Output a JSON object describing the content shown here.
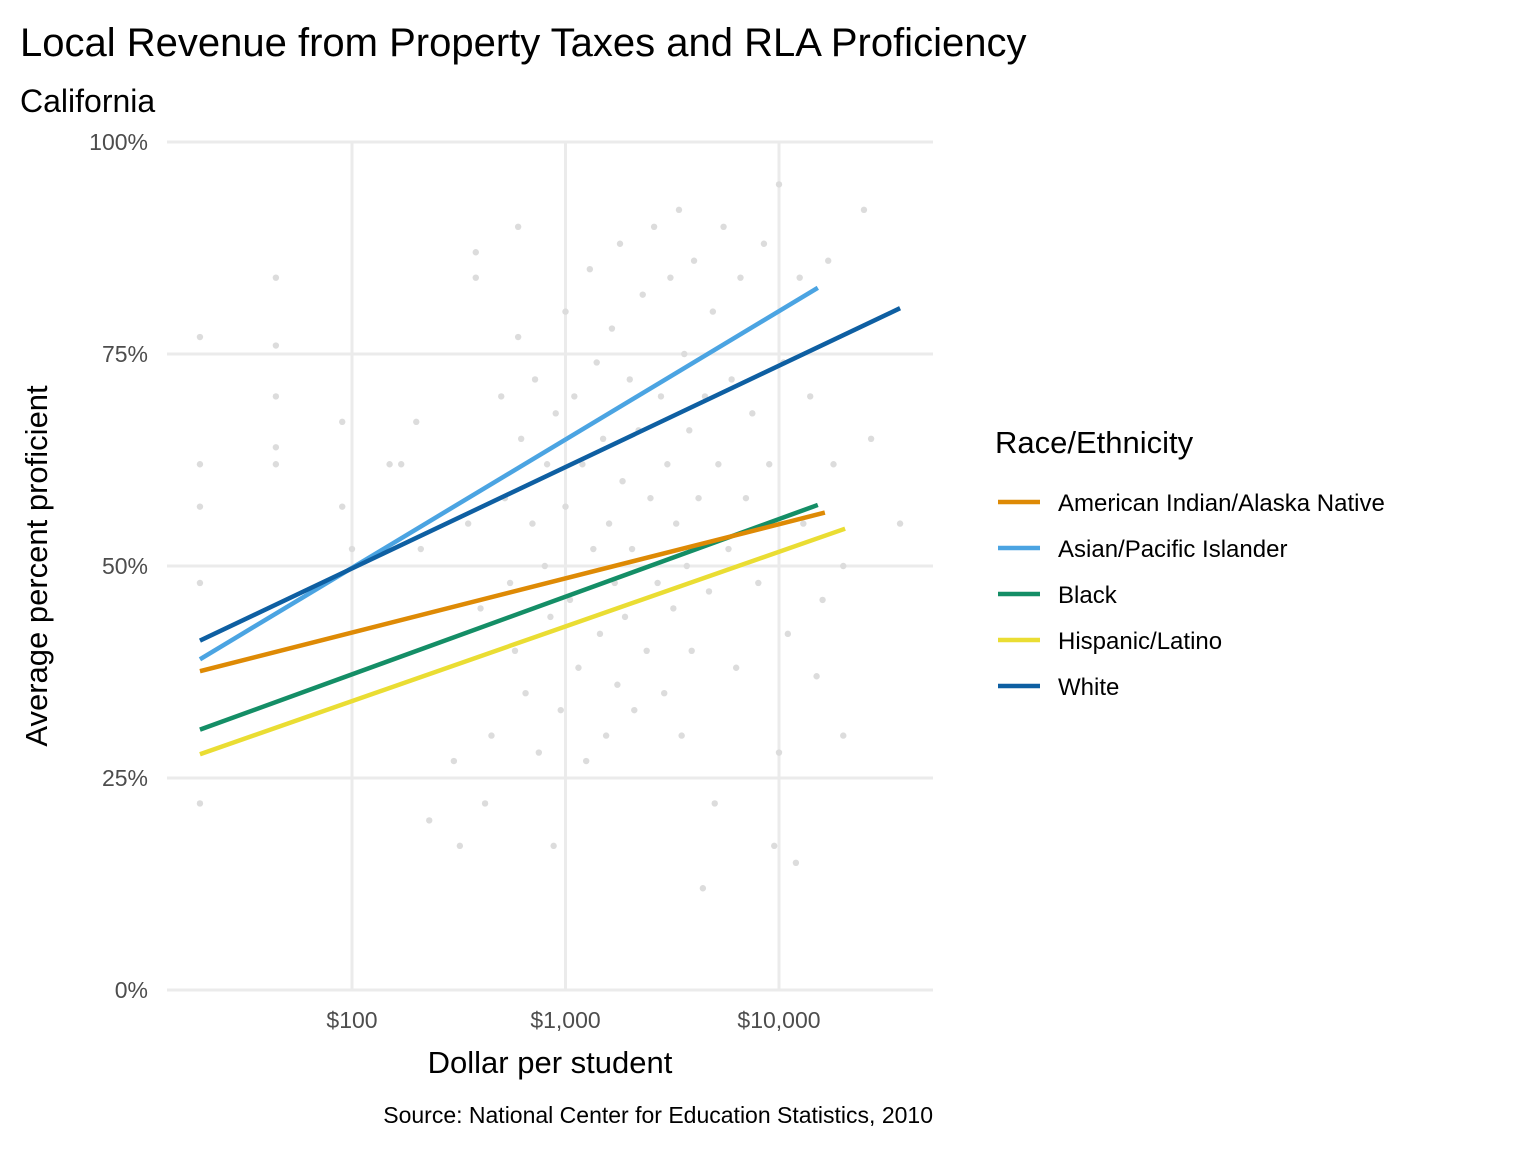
{
  "chart_data": {
    "type": "scatter",
    "title": "Local Revenue from Property Taxes and RLA Proficiency",
    "subtitle": "California",
    "xlabel": "Dollar per student",
    "ylabel": "Average percent proficient",
    "caption": "Source: National Center for Education Statistics, 2010",
    "x_scale": "log10",
    "xlim": [
      12,
      55000
    ],
    "ylim": [
      0,
      100
    ],
    "x_ticks": [
      {
        "value": 100,
        "label": "$100"
      },
      {
        "value": 1000,
        "label": "$1,000"
      },
      {
        "value": 10000,
        "label": "$10,000"
      }
    ],
    "y_ticks": [
      {
        "value": 0,
        "label": "0%"
      },
      {
        "value": 25,
        "label": "25%"
      },
      {
        "value": 50,
        "label": "50%"
      },
      {
        "value": 75,
        "label": "75%"
      },
      {
        "value": 100,
        "label": "100%"
      }
    ],
    "grid": true,
    "legend": {
      "title": "Race/Ethnicity",
      "placement": "right"
    },
    "series": [
      {
        "name": "American Indian/Alaska Native",
        "color": "#DE8A05",
        "type": "line",
        "x": [
          19.4,
          16400
        ],
        "y": [
          37.6,
          56.3
        ]
      },
      {
        "name": "Asian/Pacific Islander",
        "color": "#4BA4E2",
        "type": "line",
        "x": [
          19.4,
          15200
        ],
        "y": [
          39.0,
          82.8
        ]
      },
      {
        "name": "Black",
        "color": "#148E66",
        "type": "line",
        "x": [
          19.4,
          15200
        ],
        "y": [
          30.7,
          57.2
        ]
      },
      {
        "name": "Hispanic/Latino",
        "color": "#EADD33",
        "type": "line",
        "x": [
          19.4,
          20400
        ],
        "y": [
          27.8,
          54.4
        ]
      },
      {
        "name": "White",
        "color": "#0E5FA2",
        "type": "line",
        "x": [
          19.4,
          36900
        ],
        "y": [
          41.2,
          80.4
        ]
      }
    ],
    "points": {
      "color": "#dcdcdc",
      "data": [
        [
          19.4,
          77
        ],
        [
          19.4,
          62
        ],
        [
          19.4,
          57
        ],
        [
          19.4,
          48
        ],
        [
          19.4,
          22
        ],
        [
          44,
          84
        ],
        [
          44,
          76
        ],
        [
          44,
          70
        ],
        [
          44,
          64
        ],
        [
          44,
          62
        ],
        [
          90,
          67
        ],
        [
          90,
          57
        ],
        [
          100,
          52
        ],
        [
          150,
          62
        ],
        [
          170,
          62
        ],
        [
          200,
          67
        ],
        [
          210,
          52
        ],
        [
          230,
          20
        ],
        [
          300,
          27
        ],
        [
          320,
          17
        ],
        [
          350,
          55
        ],
        [
          380,
          84
        ],
        [
          380,
          87
        ],
        [
          400,
          45
        ],
        [
          420,
          22
        ],
        [
          450,
          30
        ],
        [
          500,
          70
        ],
        [
          520,
          58
        ],
        [
          550,
          48
        ],
        [
          580,
          40
        ],
        [
          600,
          77
        ],
        [
          620,
          65
        ],
        [
          650,
          35
        ],
        [
          700,
          55
        ],
        [
          720,
          72
        ],
        [
          750,
          28
        ],
        [
          800,
          50
        ],
        [
          820,
          62
        ],
        [
          850,
          44
        ],
        [
          880,
          17
        ],
        [
          900,
          68
        ],
        [
          950,
          33
        ],
        [
          1000,
          57
        ],
        [
          1000,
          80
        ],
        [
          1050,
          46
        ],
        [
          1100,
          70
        ],
        [
          1150,
          38
        ],
        [
          1200,
          62
        ],
        [
          1250,
          27
        ],
        [
          1300,
          85
        ],
        [
          1350,
          52
        ],
        [
          1400,
          74
        ],
        [
          1450,
          42
        ],
        [
          1500,
          65
        ],
        [
          1550,
          30
        ],
        [
          1600,
          55
        ],
        [
          1650,
          78
        ],
        [
          1700,
          48
        ],
        [
          1750,
          36
        ],
        [
          1800,
          88
        ],
        [
          1850,
          60
        ],
        [
          1900,
          44
        ],
        [
          2000,
          72
        ],
        [
          2050,
          52
        ],
        [
          2100,
          33
        ],
        [
          2200,
          66
        ],
        [
          2300,
          82
        ],
        [
          2400,
          40
        ],
        [
          2500,
          58
        ],
        [
          2600,
          90
        ],
        [
          2700,
          48
        ],
        [
          2800,
          70
        ],
        [
          2900,
          35
        ],
        [
          3000,
          62
        ],
        [
          3100,
          84
        ],
        [
          3200,
          45
        ],
        [
          3300,
          55
        ],
        [
          3400,
          92
        ],
        [
          3500,
          30
        ],
        [
          3600,
          75
        ],
        [
          3700,
          50
        ],
        [
          3800,
          66
        ],
        [
          3900,
          40
        ],
        [
          4000,
          86
        ],
        [
          4200,
          58
        ],
        [
          4400,
          12
        ],
        [
          4500,
          70
        ],
        [
          4700,
          47
        ],
        [
          4900,
          80
        ],
        [
          5000,
          22
        ],
        [
          5200,
          62
        ],
        [
          5500,
          90
        ],
        [
          5800,
          52
        ],
        [
          6000,
          72
        ],
        [
          6300,
          38
        ],
        [
          6600,
          84
        ],
        [
          7000,
          58
        ],
        [
          7500,
          68
        ],
        [
          8000,
          48
        ],
        [
          8500,
          88
        ],
        [
          9000,
          62
        ],
        [
          9500,
          17
        ],
        [
          10000,
          95
        ],
        [
          10000,
          28
        ],
        [
          10500,
          74
        ],
        [
          11000,
          42
        ],
        [
          12000,
          15
        ],
        [
          12500,
          84
        ],
        [
          13000,
          55
        ],
        [
          14000,
          70
        ],
        [
          15000,
          37
        ],
        [
          16000,
          46
        ],
        [
          17000,
          86
        ],
        [
          18000,
          62
        ],
        [
          20000,
          50
        ],
        [
          20000,
          30
        ],
        [
          25000,
          92
        ],
        [
          27000,
          65
        ],
        [
          36900,
          55
        ],
        [
          600,
          90
        ]
      ]
    }
  }
}
